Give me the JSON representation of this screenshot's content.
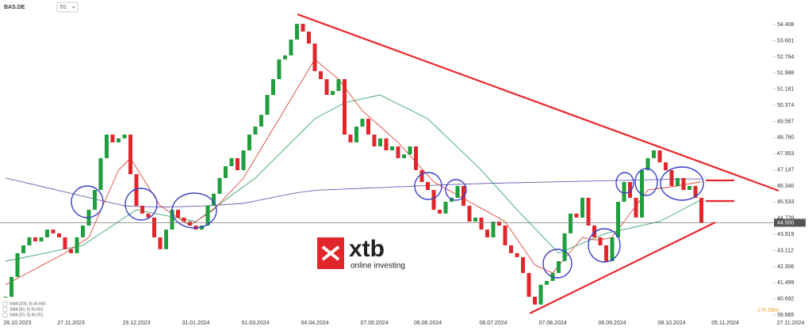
{
  "header": {
    "symbol": "BAS.DE",
    "timeframe": "D1"
  },
  "logo": {
    "name": "xtb",
    "tagline": "online investing"
  },
  "timer": "17h 58m",
  "chart_data": {
    "type": "candlestick",
    "up_color": "#1e9e3c",
    "down_color": "#e0262b",
    "legend": "bottom-left",
    "grid": false,
    "ylim": [
      39.81,
      55.64
    ],
    "yticks": [
      54.408,
      53.601,
      52.794,
      51.988,
      51.181,
      50.374,
      49.567,
      {
        "value": 48.76,
        "label": "48.760"
      },
      47.953,
      47.147,
      {
        "value": 46.34,
        "label": "46.340"
      },
      45.533,
      44.726,
      43.919,
      43.112,
      42.306,
      41.499,
      40.692,
      39.885
    ],
    "last_price": {
      "value": 44.5,
      "label": "44.500"
    },
    "categories": [
      null,
      null,
      "26.10.2023",
      null,
      null,
      null,
      null,
      null,
      null,
      null,
      null,
      "27.11.2023",
      null,
      null,
      null,
      null,
      null,
      null,
      null,
      null,
      null,
      null,
      "29.12.2023",
      null,
      null,
      null,
      null,
      null,
      null,
      null,
      null,
      null,
      "31.01.2024",
      null,
      null,
      null,
      null,
      null,
      null,
      null,
      null,
      null,
      "01.03.2024",
      null,
      null,
      null,
      null,
      null,
      null,
      null,
      null,
      null,
      "04.04.2024",
      null,
      null,
      null,
      null,
      null,
      null,
      null,
      null,
      null,
      "07.05.2024",
      null,
      null,
      null,
      null,
      null,
      null,
      null,
      null,
      "06.06.2024",
      null,
      null,
      null,
      null,
      null,
      null,
      null,
      null,
      null,
      null,
      "08.07.2024",
      null,
      null,
      null,
      null,
      null,
      null,
      null,
      null,
      null,
      "07.08.2024",
      null,
      null,
      null,
      null,
      null,
      null,
      null,
      null,
      null,
      "06.09.2024",
      null,
      null,
      null,
      null,
      null,
      null,
      null,
      null,
      null,
      "08.10.2024",
      null,
      null,
      null,
      null,
      null,
      null,
      null,
      null,
      "05.11.2024",
      null,
      null,
      null,
      null,
      null,
      null,
      null,
      null,
      null,
      null,
      "27.11.2024"
    ],
    "values": [
      40.8,
      41.79,
      42.98,
      43.37,
      43.77,
      43.57,
      43.77,
      44.16,
      43.97,
      43.77,
      43.18,
      42.98,
      43.77,
      44.36,
      45.15,
      46.14,
      47.73,
      48.91,
      48.52,
      48.72,
      48.91,
      46.93,
      45.35,
      44.96,
      44.76,
      43.77,
      43.18,
      44.16,
      45.15,
      44.76,
      44.56,
      44.36,
      44.16,
      44.36,
      45.35,
      45.95,
      46.74,
      47.33,
      47.73,
      47.13,
      48.12,
      48.91,
      49.31,
      49.9,
      50.89,
      51.68,
      52.67,
      52.87,
      53.66,
      54.45,
      54.06,
      53.46,
      52.08,
      51.68,
      50.89,
      51.09,
      51.68,
      48.91,
      48.52,
      49.31,
      49.7,
      48.91,
      48.32,
      48.72,
      48.12,
      48.32,
      47.73,
      47.92,
      48.32,
      47.13,
      46.54,
      46.14,
      45.15,
      44.96,
      45.55,
      45.75,
      46.34,
      45.35,
      44.56,
      44.76,
      44.16,
      43.77,
      44.56,
      44.36,
      43.37,
      42.98,
      42.78,
      41.99,
      40.8,
      40.41,
      41.4,
      41.59,
      41.99,
      42.58,
      43.97,
      44.96,
      44.76,
      45.75,
      44.36,
      43.77,
      43.37,
      42.58,
      43.77,
      45.55,
      46.54,
      45.75,
      44.76,
      47.13,
      47.73,
      48.12,
      47.52,
      47.13,
      46.34,
      46.74,
      46.14,
      46.34,
      45.75,
      44.5,
      null,
      null,
      null,
      null,
      null,
      null,
      null,
      null,
      null,
      null,
      null,
      null,
      null,
      null,
      null
    ],
    "series": [
      {
        "name": "SMA [200, 0] 46.693",
        "color": "#6b5fb5",
        "values": [
          46.74,
          46.67,
          46.6,
          46.53,
          46.46,
          46.39,
          46.32,
          46.25,
          46.18,
          46.11,
          46.04,
          45.97,
          45.9,
          45.83,
          45.76,
          45.69,
          45.62,
          45.55,
          45.48,
          45.42,
          45.35,
          45.33,
          45.32,
          45.31,
          45.3,
          45.3,
          45.29,
          45.29,
          45.3,
          45.3,
          45.31,
          45.32,
          45.33,
          45.34,
          45.35,
          45.37,
          45.39,
          45.41,
          45.43,
          45.45,
          45.47,
          45.53,
          45.59,
          45.65,
          45.71,
          45.77,
          45.83,
          45.89,
          45.95,
          46.0,
          46.04,
          46.08,
          46.11,
          46.14,
          46.15,
          46.16,
          46.17,
          46.19,
          46.2,
          46.21,
          46.22,
          46.24,
          46.25,
          46.26,
          46.27,
          46.29,
          46.3,
          46.31,
          46.32,
          46.34,
          46.35,
          46.36,
          46.37,
          46.39,
          46.4,
          46.41,
          46.42,
          46.43,
          46.44,
          46.45,
          46.46,
          46.47,
          46.48,
          46.48,
          46.49,
          46.5,
          46.5,
          46.51,
          46.52,
          46.52,
          46.53,
          46.54,
          46.54,
          46.55,
          46.56,
          46.56,
          46.57,
          46.58,
          46.58,
          46.59,
          46.6,
          46.6,
          46.61,
          46.62,
          46.62,
          46.63,
          46.64,
          46.64,
          46.65,
          46.66,
          46.66,
          46.67,
          46.68,
          46.68,
          46.69,
          46.69,
          46.69,
          46.69,
          null,
          null,
          null,
          null,
          null,
          null,
          null,
          null,
          null,
          null,
          null,
          null,
          null,
          null,
          null
        ]
      },
      {
        "name": "SMA [50, 0] 45.662",
        "color": "#3aa66a",
        "values": [
          42.58,
          42.64,
          42.7,
          42.76,
          42.82,
          42.88,
          42.94,
          43.0,
          43.07,
          43.13,
          43.19,
          43.25,
          43.31,
          43.37,
          43.57,
          43.77,
          43.97,
          44.16,
          44.36,
          44.56,
          44.76,
          44.95,
          45.15,
          45.09,
          45.03,
          44.97,
          44.91,
          44.86,
          44.8,
          44.74,
          44.68,
          44.62,
          44.56,
          44.78,
          45.0,
          45.21,
          45.43,
          45.65,
          45.87,
          46.09,
          46.3,
          46.52,
          46.74,
          47.04,
          47.33,
          47.63,
          47.92,
          48.22,
          48.52,
          48.81,
          49.11,
          49.4,
          49.7,
          49.86,
          50.02,
          50.18,
          50.34,
          50.5,
          50.57,
          50.63,
          50.7,
          50.76,
          50.83,
          50.89,
          50.74,
          50.59,
          50.44,
          50.3,
          50.15,
          50.0,
          49.85,
          49.7,
          49.41,
          49.13,
          48.84,
          48.56,
          48.27,
          47.99,
          47.7,
          47.42,
          47.13,
          46.8,
          46.47,
          46.14,
          45.81,
          45.48,
          45.15,
          44.84,
          44.53,
          44.22,
          43.91,
          43.6,
          43.29,
          42.98,
          43.1,
          43.23,
          43.35,
          43.48,
          43.6,
          43.72,
          43.85,
          43.97,
          44.04,
          44.1,
          44.17,
          44.23,
          44.3,
          44.37,
          44.43,
          44.5,
          44.56,
          44.72,
          44.87,
          45.03,
          45.19,
          45.35,
          45.5,
          45.66,
          null,
          null,
          null,
          null,
          null,
          null,
          null,
          null,
          null,
          null,
          null,
          null,
          null,
          null,
          null
        ]
      },
      {
        "name": "SMA [20, 0] 46.551",
        "color": "#e0453a",
        "values": [
          41.4,
          41.56,
          41.72,
          41.87,
          42.03,
          42.19,
          42.35,
          42.51,
          42.66,
          42.82,
          42.98,
          43.18,
          43.37,
          43.57,
          43.77,
          44.44,
          45.11,
          45.78,
          46.46,
          47.13,
          47.43,
          47.73,
          47.25,
          46.78,
          46.3,
          45.83,
          45.35,
          45.15,
          44.95,
          44.76,
          44.56,
          44.36,
          44.56,
          44.76,
          44.95,
          45.15,
          45.47,
          45.79,
          46.1,
          46.42,
          46.74,
          47.23,
          47.73,
          48.22,
          48.71,
          49.21,
          49.7,
          50.2,
          50.69,
          51.19,
          51.68,
          52.18,
          52.67,
          52.42,
          52.17,
          51.93,
          51.68,
          51.28,
          50.89,
          50.49,
          50.1,
          49.84,
          49.57,
          49.31,
          49.05,
          48.78,
          48.52,
          48.19,
          47.86,
          47.53,
          47.2,
          46.87,
          46.54,
          46.38,
          46.21,
          46.05,
          45.88,
          45.72,
          45.55,
          45.39,
          45.22,
          45.06,
          44.89,
          44.73,
          44.56,
          44.12,
          43.69,
          43.25,
          42.82,
          42.38,
          42.25,
          42.12,
          41.99,
          42.35,
          42.7,
          43.06,
          43.41,
          43.77,
          43.7,
          43.65,
          43.65,
          43.7,
          43.77,
          44.17,
          44.56,
          44.96,
          45.35,
          45.75,
          46.14,
          46.18,
          46.22,
          46.26,
          46.3,
          46.34,
          46.4,
          46.45,
          46.5,
          46.55,
          null,
          null,
          null,
          null,
          null,
          null,
          null,
          null,
          null,
          null,
          null,
          null,
          null,
          null,
          null
        ]
      }
    ]
  }
}
